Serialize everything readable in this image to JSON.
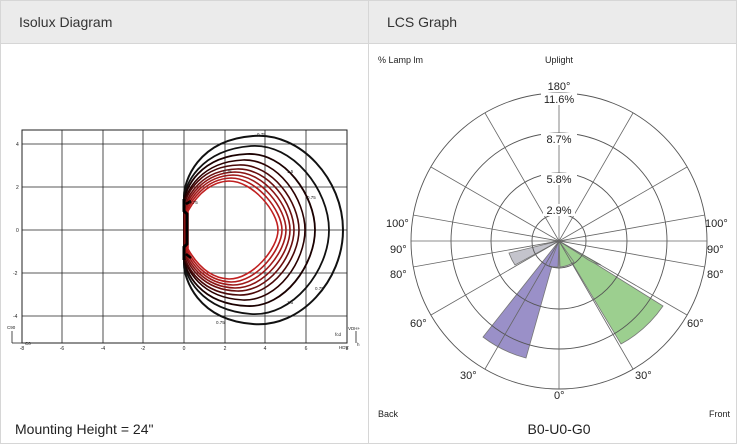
{
  "isolux": {
    "title": "Isolux Diagram",
    "x_ticks": [
      "-8",
      "-6",
      "-4",
      "-2",
      "0",
      "2",
      "4",
      "6",
      "8"
    ],
    "y_ticks": [
      "4",
      "2",
      "0",
      "-2",
      "-4"
    ],
    "contour_labels": [
      "0.75",
      "1.5",
      "0.75",
      "0.75",
      "0.75",
      "1.5",
      "0.75",
      "0.75"
    ],
    "corner_labels": {
      "c90": "C90",
      "c0": "C0",
      "vdh": "VDH+",
      "fcd": "fcd",
      "hdv": "HDV",
      "h": "h"
    },
    "footer": "Mounting Height = 24\""
  },
  "lcs": {
    "title": "LCS Graph",
    "top_left_label": "% Lamp lm",
    "top_label": "Uplight",
    "top_angle": "180°",
    "ring_labels": [
      "11.6%",
      "8.7%",
      "5.8%",
      "2.9%"
    ],
    "angle_labels": {
      "left_100": "100°",
      "left_90": "90°",
      "left_80": "80°",
      "left_60": "60°",
      "left_30": "30°",
      "bottom_0": "0°",
      "right_30": "30°",
      "right_60": "60°",
      "right_80": "80°",
      "right_90": "90°",
      "right_100": "100°"
    },
    "back_label": "Back",
    "front_label": "Front",
    "rating": "B0-U0-G0",
    "colors": {
      "back": "#9a90c8",
      "front": "#9ccf8f",
      "bl": "#c4c4cc"
    }
  }
}
